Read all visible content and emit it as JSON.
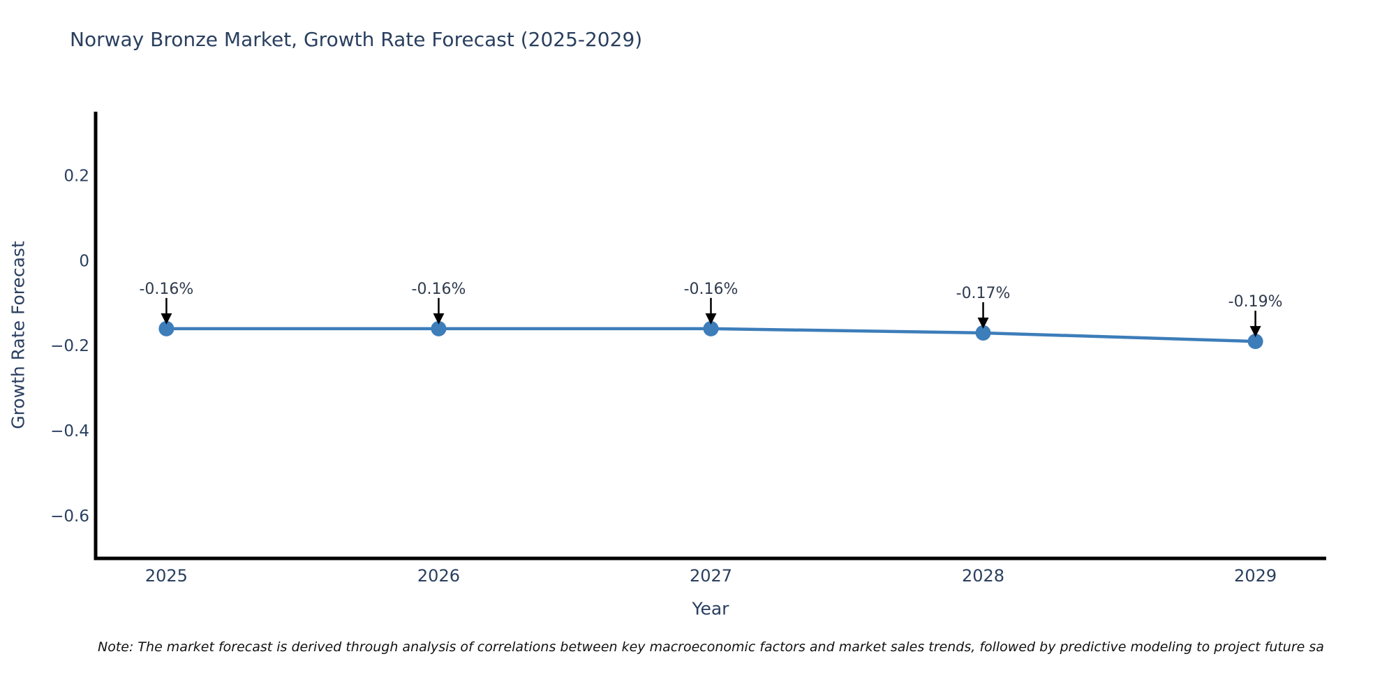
{
  "chart_data": {
    "type": "line",
    "title": "Norway Bronze Market, Growth Rate Forecast (2025-2029)",
    "xlabel": "Year",
    "ylabel": "Growth Rate Forecast",
    "x": [
      2025,
      2026,
      2027,
      2028,
      2029
    ],
    "y": [
      -0.16,
      -0.16,
      -0.16,
      -0.17,
      -0.19
    ],
    "point_labels": [
      "-0.16%",
      "-0.16%",
      "-0.16%",
      "-0.17%",
      "-0.19%"
    ],
    "xticks": [
      2025,
      2026,
      2027,
      2028,
      2029
    ],
    "xtick_labels": [
      "2025",
      "2026",
      "2027",
      "2028",
      "2029"
    ],
    "yticks": [
      0.2,
      0,
      -0.2,
      -0.4,
      -0.6
    ],
    "ytick_labels": [
      "0.2",
      "0",
      "−0.2",
      "−0.4",
      "−0.6"
    ],
    "xlim": [
      2024.74,
      2029.26
    ],
    "ylim": [
      -0.7,
      0.35
    ],
    "grid": false,
    "legend": null,
    "colors": {
      "line": "#3d7dba",
      "marker": "#3d7dba",
      "spine": "#000000",
      "tick_text": "#2a3f5f",
      "annotation_text": "#2f3b4e",
      "arrow": "#000000"
    }
  },
  "footnote": {
    "text": "Note: The market forecast is derived through analysis of correlations between key macroeconomic factors and market sales trends, followed by predictive modeling to project future sa"
  }
}
